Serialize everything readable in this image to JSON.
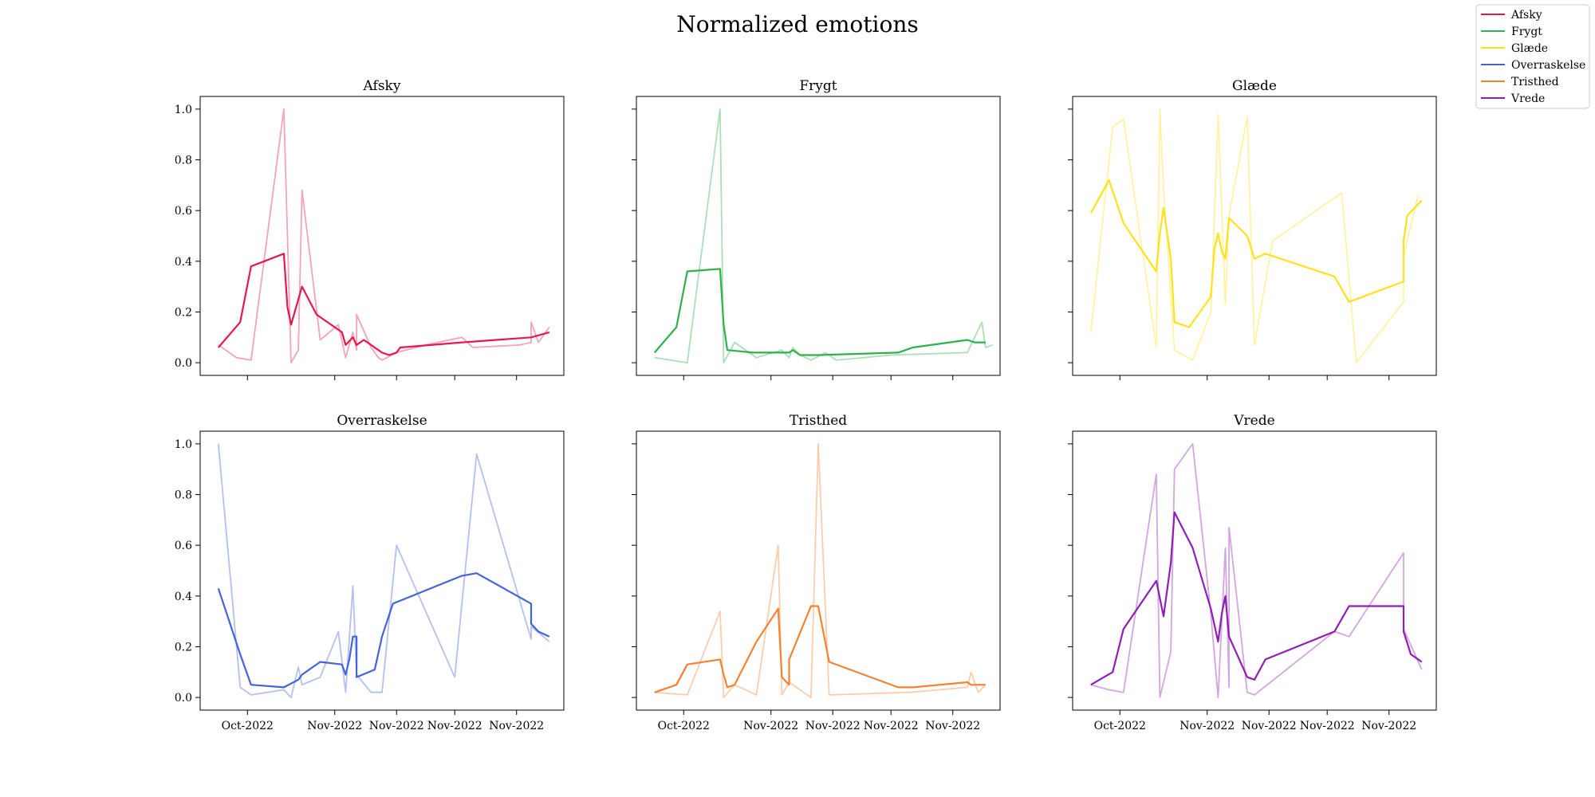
{
  "figure": {
    "title": "Normalized emotions",
    "xtick_labels": [
      "Oct-2022",
      "Nov-2022",
      "Nov-2022",
      "Nov-2022",
      "Nov-2022"
    ],
    "ytick_labels": [
      "0.0",
      "0.2",
      "0.4",
      "0.6",
      "0.8",
      "1.0"
    ]
  },
  "legend": {
    "placement": "top-right",
    "items": [
      {
        "label": "Afsky",
        "color": "#e6194b"
      },
      {
        "label": "Frygt",
        "color": "#2db14c"
      },
      {
        "label": "Glæde",
        "color": "#ffe119"
      },
      {
        "label": "Overraskelse",
        "color": "#4363d8"
      },
      {
        "label": "Tristhed",
        "color": "#f58231"
      },
      {
        "label": "Vrede",
        "color": "#911eb4"
      }
    ]
  },
  "chart_data": [
    {
      "type": "line",
      "title": "Afsky",
      "color": "#e6194b",
      "ylim": [
        -0.05,
        1.05
      ],
      "grid": false,
      "series": [
        {
          "role": "raw",
          "points": [
            [
              0.05,
              0.07
            ],
            [
              0.1,
              0.02
            ],
            [
              0.14,
              0.01
            ],
            [
              0.23,
              1.0
            ],
            [
              0.25,
              0.0
            ],
            [
              0.27,
              0.05
            ],
            [
              0.28,
              0.68
            ],
            [
              0.33,
              0.09
            ],
            [
              0.38,
              0.15
            ],
            [
              0.4,
              0.02
            ],
            [
              0.42,
              0.12
            ],
            [
              0.43,
              0.05
            ],
            [
              0.43,
              0.19
            ],
            [
              0.47,
              0.06
            ],
            [
              0.49,
              0.02
            ],
            [
              0.5,
              0.01
            ],
            [
              0.54,
              0.04
            ],
            [
              0.62,
              0.07
            ],
            [
              0.72,
              0.1
            ],
            [
              0.75,
              0.06
            ],
            [
              0.88,
              0.07
            ],
            [
              0.91,
              0.08
            ],
            [
              0.91,
              0.16
            ],
            [
              0.93,
              0.08
            ],
            [
              0.96,
              0.14
            ]
          ]
        },
        {
          "role": "smoothed",
          "points": [
            [
              0.05,
              0.06
            ],
            [
              0.11,
              0.16
            ],
            [
              0.14,
              0.38
            ],
            [
              0.23,
              0.43
            ],
            [
              0.24,
              0.22
            ],
            [
              0.25,
              0.15
            ],
            [
              0.28,
              0.3
            ],
            [
              0.32,
              0.19
            ],
            [
              0.39,
              0.12
            ],
            [
              0.4,
              0.07
            ],
            [
              0.42,
              0.1
            ],
            [
              0.43,
              0.07
            ],
            [
              0.45,
              0.09
            ],
            [
              0.49,
              0.05
            ],
            [
              0.5,
              0.04
            ],
            [
              0.52,
              0.03
            ],
            [
              0.54,
              0.04
            ],
            [
              0.55,
              0.06
            ],
            [
              0.72,
              0.08
            ],
            [
              0.91,
              0.1
            ],
            [
              0.96,
              0.12
            ]
          ]
        }
      ]
    },
    {
      "type": "line",
      "title": "Frygt",
      "color": "#2db14c",
      "ylim": [
        -0.05,
        1.05
      ],
      "grid": false,
      "series": [
        {
          "role": "raw",
          "points": [
            [
              0.05,
              0.02
            ],
            [
              0.14,
              0.0
            ],
            [
              0.23,
              1.0
            ],
            [
              0.24,
              0.0
            ],
            [
              0.27,
              0.08
            ],
            [
              0.33,
              0.02
            ],
            [
              0.4,
              0.05
            ],
            [
              0.42,
              0.02
            ],
            [
              0.43,
              0.06
            ],
            [
              0.45,
              0.03
            ],
            [
              0.48,
              0.01
            ],
            [
              0.52,
              0.04
            ],
            [
              0.55,
              0.01
            ],
            [
              0.7,
              0.03
            ],
            [
              0.91,
              0.04
            ],
            [
              0.95,
              0.16
            ],
            [
              0.96,
              0.06
            ],
            [
              0.98,
              0.07
            ]
          ]
        },
        {
          "role": "smoothed",
          "points": [
            [
              0.05,
              0.04
            ],
            [
              0.11,
              0.14
            ],
            [
              0.14,
              0.36
            ],
            [
              0.23,
              0.37
            ],
            [
              0.24,
              0.15
            ],
            [
              0.25,
              0.05
            ],
            [
              0.32,
              0.04
            ],
            [
              0.42,
              0.04
            ],
            [
              0.43,
              0.05
            ],
            [
              0.45,
              0.03
            ],
            [
              0.5,
              0.03
            ],
            [
              0.72,
              0.04
            ],
            [
              0.76,
              0.06
            ],
            [
              0.91,
              0.09
            ],
            [
              0.93,
              0.08
            ],
            [
              0.96,
              0.08
            ]
          ]
        }
      ]
    },
    {
      "type": "line",
      "title": "Glæde",
      "color": "#ffe119",
      "ylim": [
        -0.05,
        1.05
      ],
      "grid": false,
      "series": [
        {
          "role": "raw",
          "points": [
            [
              0.05,
              0.12
            ],
            [
              0.11,
              0.93
            ],
            [
              0.14,
              0.96
            ],
            [
              0.23,
              0.06
            ],
            [
              0.24,
              1.0
            ],
            [
              0.25,
              0.69
            ],
            [
              0.28,
              0.05
            ],
            [
              0.33,
              0.01
            ],
            [
              0.38,
              0.2
            ],
            [
              0.4,
              0.98
            ],
            [
              0.42,
              0.23
            ],
            [
              0.43,
              0.58
            ],
            [
              0.48,
              0.97
            ],
            [
              0.5,
              0.07
            ],
            [
              0.55,
              0.48
            ],
            [
              0.74,
              0.67
            ],
            [
              0.78,
              0.0
            ],
            [
              0.91,
              0.24
            ],
            [
              0.91,
              0.42
            ],
            [
              0.95,
              0.66
            ]
          ]
        },
        {
          "role": "smoothed",
          "points": [
            [
              0.05,
              0.59
            ],
            [
              0.1,
              0.72
            ],
            [
              0.14,
              0.55
            ],
            [
              0.23,
              0.36
            ],
            [
              0.24,
              0.51
            ],
            [
              0.25,
              0.61
            ],
            [
              0.27,
              0.41
            ],
            [
              0.28,
              0.16
            ],
            [
              0.32,
              0.14
            ],
            [
              0.38,
              0.26
            ],
            [
              0.39,
              0.45
            ],
            [
              0.4,
              0.51
            ],
            [
              0.41,
              0.44
            ],
            [
              0.42,
              0.41
            ],
            [
              0.43,
              0.57
            ],
            [
              0.48,
              0.5
            ],
            [
              0.5,
              0.41
            ],
            [
              0.53,
              0.43
            ],
            [
              0.72,
              0.34
            ],
            [
              0.76,
              0.24
            ],
            [
              0.91,
              0.32
            ],
            [
              0.91,
              0.48
            ],
            [
              0.92,
              0.58
            ],
            [
              0.96,
              0.64
            ]
          ]
        }
      ]
    },
    {
      "type": "line",
      "title": "Overraskelse",
      "color": "#4363d8",
      "ylim": [
        -0.05,
        1.05
      ],
      "grid": false,
      "series": [
        {
          "role": "raw",
          "points": [
            [
              0.05,
              1.0
            ],
            [
              0.11,
              0.04
            ],
            [
              0.14,
              0.01
            ],
            [
              0.23,
              0.03
            ],
            [
              0.25,
              0.0
            ],
            [
              0.27,
              0.12
            ],
            [
              0.28,
              0.05
            ],
            [
              0.33,
              0.08
            ],
            [
              0.38,
              0.26
            ],
            [
              0.4,
              0.02
            ],
            [
              0.42,
              0.44
            ],
            [
              0.43,
              0.09
            ],
            [
              0.47,
              0.02
            ],
            [
              0.5,
              0.02
            ],
            [
              0.54,
              0.6
            ],
            [
              0.7,
              0.08
            ],
            [
              0.76,
              0.96
            ],
            [
              0.91,
              0.23
            ],
            [
              0.91,
              0.28
            ],
            [
              0.96,
              0.22
            ]
          ]
        },
        {
          "role": "smoothed",
          "points": [
            [
              0.05,
              0.43
            ],
            [
              0.11,
              0.17
            ],
            [
              0.14,
              0.05
            ],
            [
              0.23,
              0.04
            ],
            [
              0.27,
              0.07
            ],
            [
              0.28,
              0.09
            ],
            [
              0.33,
              0.14
            ],
            [
              0.39,
              0.13
            ],
            [
              0.4,
              0.09
            ],
            [
              0.41,
              0.15
            ],
            [
              0.42,
              0.24
            ],
            [
              0.43,
              0.24
            ],
            [
              0.43,
              0.08
            ],
            [
              0.48,
              0.11
            ],
            [
              0.5,
              0.24
            ],
            [
              0.53,
              0.37
            ],
            [
              0.72,
              0.48
            ],
            [
              0.76,
              0.49
            ],
            [
              0.91,
              0.37
            ],
            [
              0.91,
              0.29
            ],
            [
              0.93,
              0.26
            ],
            [
              0.96,
              0.24
            ]
          ]
        }
      ]
    },
    {
      "type": "line",
      "title": "Tristhed",
      "color": "#f58231",
      "ylim": [
        -0.05,
        1.05
      ],
      "grid": false,
      "series": [
        {
          "role": "raw",
          "points": [
            [
              0.05,
              0.02
            ],
            [
              0.14,
              0.01
            ],
            [
              0.23,
              0.34
            ],
            [
              0.24,
              0.0
            ],
            [
              0.27,
              0.05
            ],
            [
              0.33,
              0.01
            ],
            [
              0.39,
              0.6
            ],
            [
              0.4,
              0.01
            ],
            [
              0.42,
              0.06
            ],
            [
              0.48,
              0.0
            ],
            [
              0.5,
              1.0
            ],
            [
              0.53,
              0.01
            ],
            [
              0.75,
              0.02
            ],
            [
              0.91,
              0.04
            ],
            [
              0.92,
              0.1
            ],
            [
              0.94,
              0.02
            ],
            [
              0.96,
              0.05
            ]
          ]
        },
        {
          "role": "smoothed",
          "points": [
            [
              0.05,
              0.02
            ],
            [
              0.11,
              0.05
            ],
            [
              0.14,
              0.13
            ],
            [
              0.23,
              0.15
            ],
            [
              0.24,
              0.09
            ],
            [
              0.25,
              0.04
            ],
            [
              0.27,
              0.05
            ],
            [
              0.33,
              0.22
            ],
            [
              0.39,
              0.35
            ],
            [
              0.4,
              0.08
            ],
            [
              0.42,
              0.05
            ],
            [
              0.42,
              0.15
            ],
            [
              0.48,
              0.36
            ],
            [
              0.5,
              0.36
            ],
            [
              0.53,
              0.14
            ],
            [
              0.72,
              0.04
            ],
            [
              0.76,
              0.04
            ],
            [
              0.91,
              0.06
            ],
            [
              0.92,
              0.05
            ],
            [
              0.96,
              0.05
            ]
          ]
        }
      ]
    },
    {
      "type": "line",
      "title": "Vrede",
      "color": "#911eb4",
      "ylim": [
        -0.05,
        1.05
      ],
      "grid": false,
      "series": [
        {
          "role": "raw",
          "points": [
            [
              0.05,
              0.05
            ],
            [
              0.1,
              0.03
            ],
            [
              0.14,
              0.02
            ],
            [
              0.23,
              0.88
            ],
            [
              0.24,
              0.0
            ],
            [
              0.27,
              0.18
            ],
            [
              0.28,
              0.9
            ],
            [
              0.33,
              1.0
            ],
            [
              0.38,
              0.33
            ],
            [
              0.4,
              0.0
            ],
            [
              0.42,
              0.59
            ],
            [
              0.43,
              0.04
            ],
            [
              0.43,
              0.67
            ],
            [
              0.48,
              0.02
            ],
            [
              0.5,
              0.01
            ],
            [
              0.72,
              0.26
            ],
            [
              0.76,
              0.24
            ],
            [
              0.91,
              0.57
            ],
            [
              0.91,
              0.27
            ],
            [
              0.96,
              0.11
            ]
          ]
        },
        {
          "role": "smoothed",
          "points": [
            [
              0.05,
              0.05
            ],
            [
              0.11,
              0.1
            ],
            [
              0.14,
              0.27
            ],
            [
              0.23,
              0.46
            ],
            [
              0.25,
              0.32
            ],
            [
              0.27,
              0.53
            ],
            [
              0.28,
              0.73
            ],
            [
              0.33,
              0.59
            ],
            [
              0.38,
              0.35
            ],
            [
              0.4,
              0.22
            ],
            [
              0.41,
              0.33
            ],
            [
              0.42,
              0.4
            ],
            [
              0.43,
              0.24
            ],
            [
              0.48,
              0.08
            ],
            [
              0.5,
              0.07
            ],
            [
              0.53,
              0.15
            ],
            [
              0.72,
              0.26
            ],
            [
              0.76,
              0.36
            ],
            [
              0.91,
              0.36
            ],
            [
              0.91,
              0.26
            ],
            [
              0.93,
              0.17
            ],
            [
              0.96,
              0.14
            ]
          ]
        }
      ]
    }
  ]
}
